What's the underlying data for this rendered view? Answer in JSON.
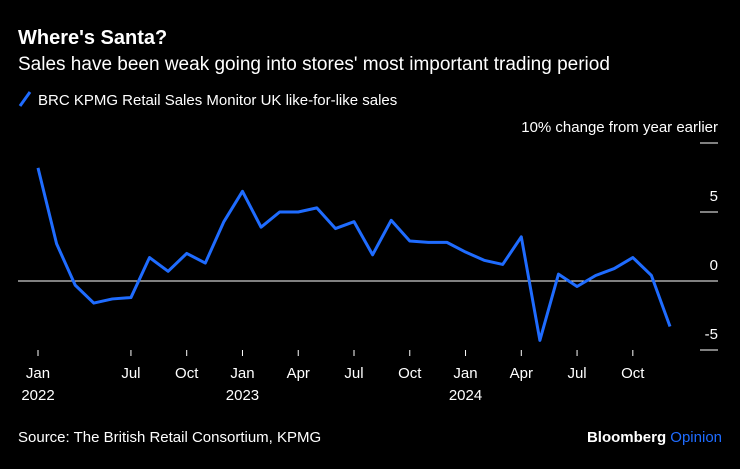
{
  "chart_data": {
    "type": "line",
    "title": "Where's Santa?",
    "subtitle": "Sales have been weak going into stores' most important trading period",
    "source": "Source: The British Retail Consortium, KPMG",
    "brand": {
      "name": "Bloomberg",
      "section": "Opinion"
    },
    "x": [
      0,
      1,
      2,
      3,
      4,
      5,
      6,
      7,
      8,
      9,
      10,
      11,
      12,
      13,
      14,
      15,
      16,
      17,
      18,
      19,
      20,
      21,
      22,
      23,
      24,
      25,
      26,
      27,
      28,
      29,
      30,
      31,
      32,
      33,
      34
    ],
    "series": [
      {
        "name": "BRC KPMG Retail Sales Monitor UK like-for-like sales",
        "color": "#1f6cff",
        "values": [
          8.2,
          2.7,
          -0.3,
          -1.6,
          -1.3,
          -1.2,
          1.7,
          0.7,
          2.0,
          1.3,
          4.3,
          6.5,
          3.9,
          5.0,
          5.0,
          5.3,
          3.8,
          4.3,
          1.9,
          4.4,
          2.9,
          2.8,
          2.8,
          2.1,
          1.5,
          1.2,
          3.2,
          -4.3,
          0.5,
          -0.4,
          0.4,
          0.9,
          1.7,
          0.4,
          -3.3
        ]
      }
    ],
    "xlim": [
      0,
      34
    ],
    "xticks": [
      {
        "value": 0,
        "label": "Jan",
        "year": "2022"
      },
      {
        "value": 5,
        "label": "Jul"
      },
      {
        "value": 8,
        "label": "Oct"
      },
      {
        "value": 11,
        "label": "Jan",
        "year": "2023"
      },
      {
        "value": 14,
        "label": "Apr"
      },
      {
        "value": 17,
        "label": "Jul"
      },
      {
        "value": 20,
        "label": "Oct"
      },
      {
        "value": 23,
        "label": "Jan",
        "year": "2024"
      },
      {
        "value": 26,
        "label": "Apr"
      },
      {
        "value": 29,
        "label": "Jul"
      },
      {
        "value": 32,
        "label": "Oct"
      }
    ],
    "ylim": [
      -5,
      10
    ],
    "yticks": [
      -5,
      0,
      5,
      {
        "value": 10,
        "label": "10% change from  year earlier"
      }
    ]
  }
}
